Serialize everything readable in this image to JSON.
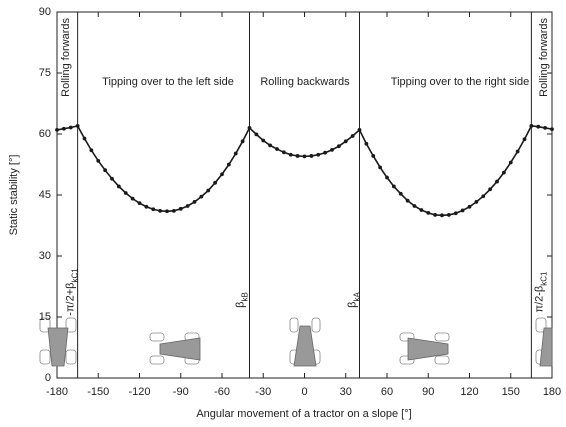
{
  "chart_data": {
    "type": "line",
    "xlabel": "Angular movement of a tractor on a slope [°]",
    "ylabel": "Static stability [°]",
    "x": [
      -180,
      -175,
      -170,
      -165,
      -160,
      -155,
      -150,
      -145,
      -140,
      -135,
      -130,
      -125,
      -120,
      -115,
      -110,
      -105,
      -100,
      -95,
      -90,
      -85,
      -80,
      -75,
      -70,
      -65,
      -60,
      -55,
      -50,
      -45,
      -40,
      -35,
      -30,
      -25,
      -20,
      -15,
      -10,
      -5,
      0,
      5,
      10,
      15,
      20,
      25,
      30,
      35,
      40,
      45,
      50,
      55,
      60,
      65,
      70,
      75,
      80,
      85,
      90,
      95,
      100,
      105,
      110,
      115,
      120,
      125,
      130,
      135,
      140,
      145,
      150,
      155,
      160,
      165,
      170,
      175,
      180
    ],
    "series": [
      {
        "color": "#1a1a1a",
        "values": [
          61,
          61.3,
          61.6,
          62,
          58.9,
          56.0,
          53.4,
          51.1,
          49.0,
          47.1,
          45.5,
          44.1,
          43.0,
          42.1,
          41.5,
          41.1,
          41,
          41.1,
          41.6,
          42.3,
          43.3,
          44.6,
          46.1,
          48.0,
          50.1,
          52.5,
          55.2,
          58.2,
          61.5,
          59.9,
          58.4,
          57.2,
          56.3,
          55.5,
          54.9,
          54.6,
          54.5,
          54.6,
          54.9,
          55.4,
          56.1,
          57.0,
          58.2,
          59.5,
          61,
          57.6,
          54.6,
          51.8,
          49.3,
          47.1,
          45.3,
          43.6,
          42.3,
          41.3,
          40.6,
          40.1,
          40,
          40.1,
          40.5,
          41.2,
          42.1,
          43.3,
          44.7,
          46.4,
          48.3,
          50.5,
          53.0,
          55.7,
          58.7,
          62,
          61.8,
          61.5,
          61.2
        ]
      }
    ],
    "xlim": [
      -180,
      180
    ],
    "xticks": [
      -180,
      -150,
      -120,
      -90,
      -60,
      -30,
      0,
      30,
      60,
      90,
      120,
      150,
      180
    ],
    "ylim": [
      0,
      90
    ],
    "yticks": [
      0,
      15,
      30,
      45,
      60,
      75,
      90
    ],
    "annotations": [
      "Rolling forwards",
      "Tipping over to the left side",
      "Rolling backwards",
      "Tipping over to the right side",
      "Rolling forwards"
    ],
    "reference_lines": [
      {
        "x": -165,
        "label": "-π/2+β",
        "sub": "kC1"
      },
      {
        "x": -40,
        "label": "β",
        "sub": "kB"
      },
      {
        "x": 40,
        "label": "β",
        "sub": "kA"
      },
      {
        "x": 165,
        "label": "π/2-β",
        "sub": "kC1"
      }
    ]
  }
}
